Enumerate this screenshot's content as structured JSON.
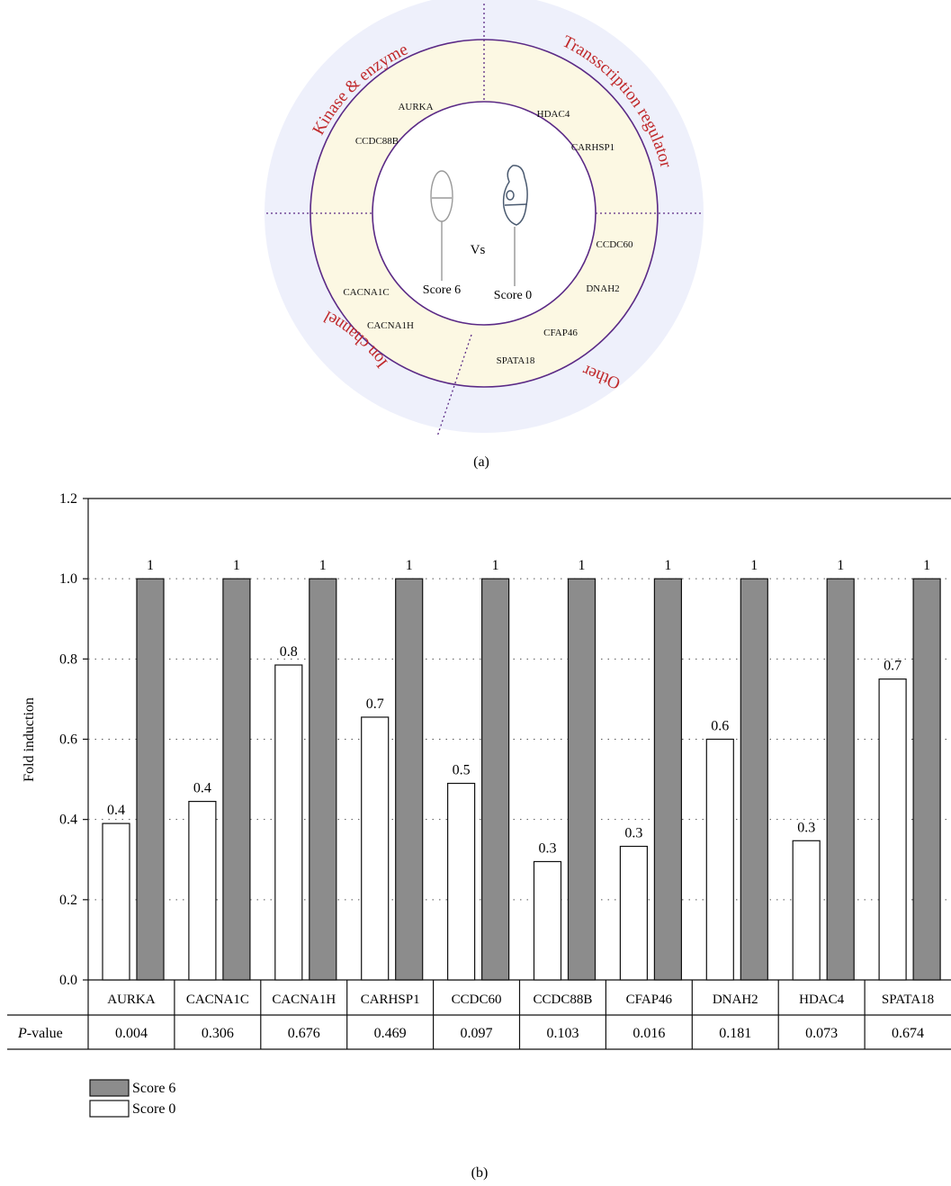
{
  "panel_a": {
    "caption": "(a)",
    "categories": [
      "Kinase & enzyme",
      "Transscription regulator",
      "Ion channel",
      "Other"
    ],
    "genes": [
      "AURKA",
      "CCDC88B",
      "HDAC4",
      "CARHSP1",
      "CCDC60",
      "DNAH2",
      "CFAP46",
      "SPATA18",
      "CACNA1C",
      "CACNA1H"
    ],
    "center": {
      "vs": "Vs",
      "left_label": "Score 6",
      "right_label": "Score 0"
    },
    "colors": {
      "outer_ring": "#eef0fb",
      "inner_ring": "#fcf8e3",
      "ring_stroke": "#5b2a86",
      "category_text": "#c0292b"
    }
  },
  "panel_b": {
    "caption": "(b)",
    "table": {
      "row_label_italic": "P",
      "row_label_rest": "-value",
      "p_values": [
        "0.004",
        "0.306",
        "0.676",
        "0.469",
        "0.097",
        "0.103",
        "0.016",
        "0.181",
        "0.073",
        "0.674"
      ]
    },
    "legend": [
      {
        "label": "Score 6",
        "color": "#8c8c8c"
      },
      {
        "label": "Score 0",
        "color": "#ffffff"
      }
    ]
  },
  "chart_data": {
    "type": "bar",
    "ylabel": "Fold induction",
    "ylim": [
      0,
      1.2
    ],
    "yticks": [
      "0.0",
      "0.2",
      "0.4",
      "0.6",
      "0.8",
      "1.0",
      "1.2"
    ],
    "grid": "horizontal dotted",
    "categories": [
      "AURKA",
      "CACNA1C",
      "CACNA1H",
      "CARHSP1",
      "CCDC60",
      "CCDC88B",
      "CFAP46",
      "DNAH2",
      "HDAC4",
      "SPATA18"
    ],
    "series": [
      {
        "name": "Score 0",
        "color": "#ffffff",
        "values": [
          0.39,
          0.445,
          0.785,
          0.655,
          0.49,
          0.295,
          0.333,
          0.6,
          0.347,
          0.75
        ],
        "labels": [
          "0.4",
          "0.4",
          "0.8",
          "0.7",
          "0.5",
          "0.3",
          "0.3",
          "0.6",
          "0.3",
          "0.7"
        ]
      },
      {
        "name": "Score 6",
        "color": "#8c8c8c",
        "values": [
          1,
          1,
          1,
          1,
          1,
          1,
          1,
          1,
          1,
          1
        ],
        "labels": [
          "1",
          "1",
          "1",
          "1",
          "1",
          "1",
          "1",
          "1",
          "1",
          "1"
        ]
      }
    ]
  }
}
